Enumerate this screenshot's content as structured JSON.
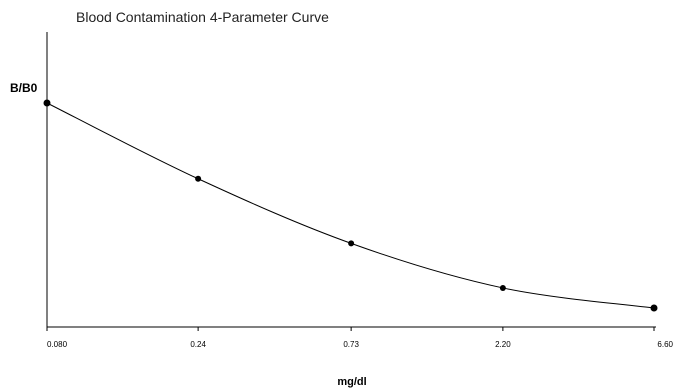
{
  "chart_data": {
    "type": "scatter",
    "title": "Blood Contamination 4-Parameter Curve",
    "xlabel": "mg/dl",
    "ylabel": "B/B0",
    "x_scale": "log",
    "x_ticks": [
      "0.080",
      "0.24",
      "0.73",
      "2.20",
      "6.60"
    ],
    "x": [
      0.08,
      0.24,
      0.73,
      2.2,
      6.6
    ],
    "y": [
      0.97,
      0.63,
      0.34,
      0.14,
      0.05
    ],
    "ylim": [
      0,
      1.05
    ],
    "grid": false,
    "fit_curve": "4-parameter logistic",
    "colors": {
      "points": "#000000",
      "curve": "#000000",
      "axes": "#000000"
    }
  }
}
